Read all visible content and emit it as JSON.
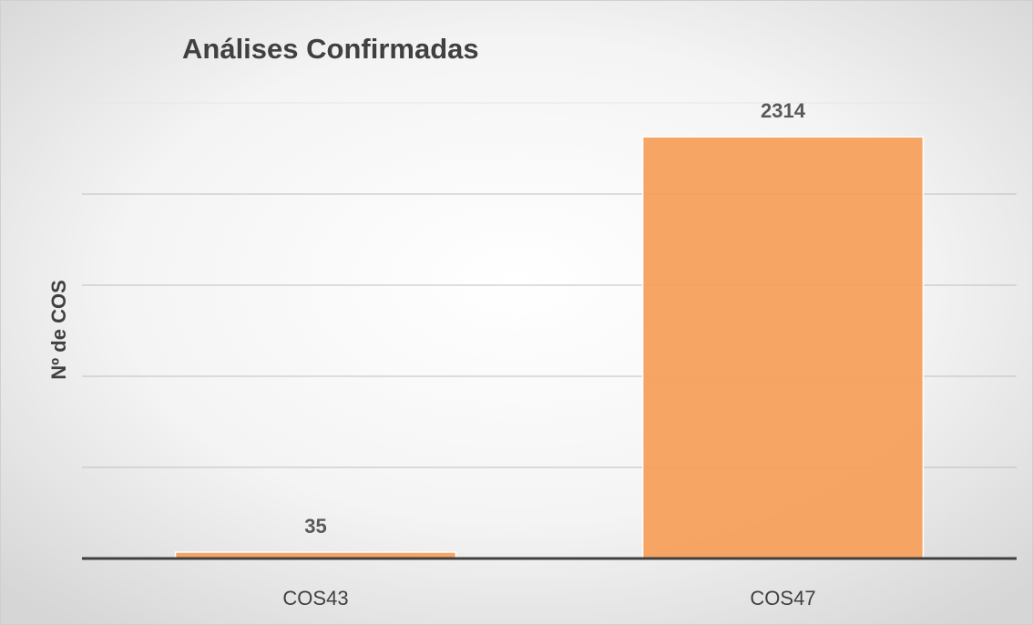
{
  "chart_data": {
    "type": "bar",
    "title": "Análises Confirmadas",
    "y_label": "Nº de COS",
    "categories": [
      "COS43",
      "COS47"
    ],
    "values": [
      35,
      2314
    ],
    "color": "#f5a05c",
    "ylim": [
      0,
      2500
    ],
    "yticks": [
      0,
      500,
      1000,
      1500,
      2000,
      2500
    ],
    "grid": true
  }
}
